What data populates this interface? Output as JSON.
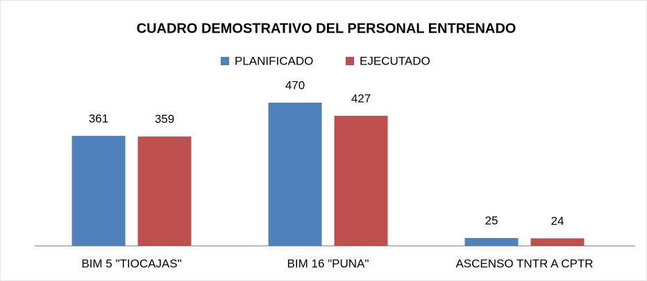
{
  "chart_data": {
    "type": "bar",
    "title": "CUADRO DEMOSTRATIVO DEL PERSONAL ENTRENADO",
    "categories": [
      "BIM 5 \"TIOCAJAS\"",
      "BIM 16 \"PUNA\"",
      "ASCENSO TNTR A CPTR"
    ],
    "series": [
      {
        "name": "PLANIFICADO",
        "color": "#4f81bd",
        "values": [
          361,
          470,
          25
        ]
      },
      {
        "name": "EJECUTADO",
        "color": "#c0504d",
        "values": [
          359,
          427,
          24
        ]
      }
    ],
    "legend": "top"
  }
}
